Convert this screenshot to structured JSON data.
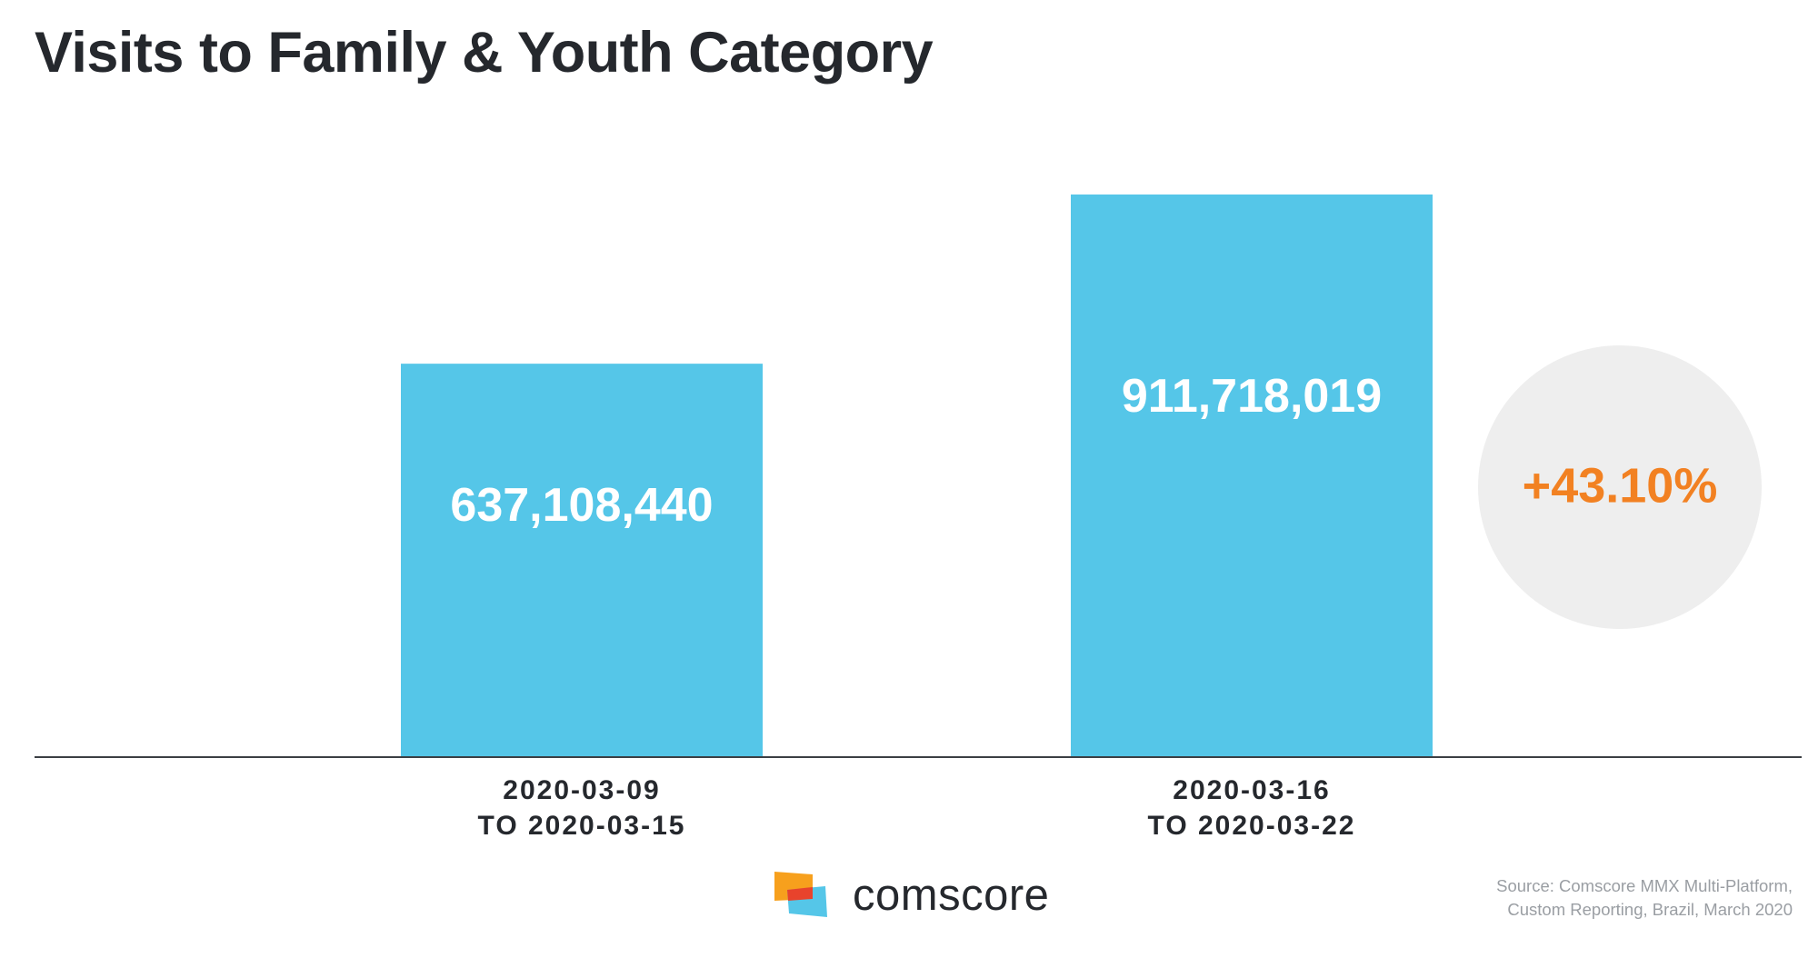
{
  "title": "Visits to Family & Youth Category",
  "chart_data": {
    "type": "bar",
    "categories": [
      [
        "2020-03-09",
        "TO 2020-03-15"
      ],
      [
        "2020-03-16",
        "TO 2020-03-22"
      ]
    ],
    "values": [
      637108440,
      911718019
    ],
    "value_labels": [
      "637,108,440",
      "911,718,019"
    ],
    "change_label": "+43.10%",
    "title": "Visits to Family & Youth Category",
    "xlabel": "",
    "ylabel": "",
    "ylim": [
      0,
      911718019
    ],
    "grid": false,
    "legend": "none",
    "colors": {
      "bar": "#55c6e8",
      "bar_label": "#ffffff",
      "change_text": "#f28122",
      "change_circle": "#eeeeee",
      "axis": "#3b3f44",
      "category_text": "#25282d"
    }
  },
  "source": {
    "line1": "Source: Comscore MMX Multi-Platform,",
    "line2": "Custom Reporting, Brazil, March 2020"
  },
  "logo": {
    "text": "comscore",
    "icon": "comscore-logo-icon"
  }
}
